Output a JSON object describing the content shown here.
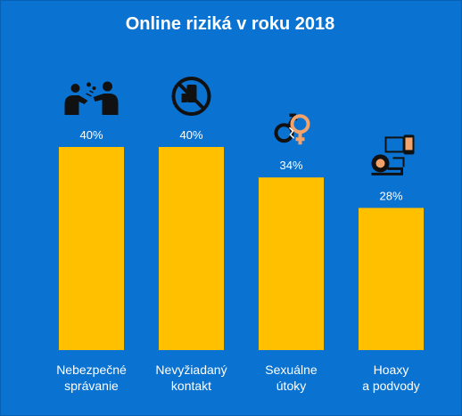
{
  "title": "Online riziká v roku 2018",
  "colors": {
    "background": "#0a72d1",
    "bar": "#ffc000",
    "text": "#ffffff",
    "icon_dark": "#111111",
    "icon_accent": "#f2a36b"
  },
  "chart_data": {
    "type": "bar",
    "title": "Online riziká v roku 2018",
    "categories": [
      [
        "Nebezpečné",
        "správanie"
      ],
      [
        "Nevyžiadaný",
        "kontakt"
      ],
      [
        "Sexuálne",
        "útoky"
      ],
      [
        "Hoaxy",
        "a podvody"
      ]
    ],
    "values": [
      40,
      40,
      34,
      28
    ],
    "value_labels": [
      "40%",
      "40%",
      "34%",
      "28%"
    ],
    "icons": [
      "fighting-people-icon",
      "no-contact-icon",
      "gender-symbols-icon",
      "money-fraud-icon"
    ],
    "unit": "%",
    "ylim": [
      0,
      40
    ],
    "grid": false,
    "legend": "none"
  }
}
